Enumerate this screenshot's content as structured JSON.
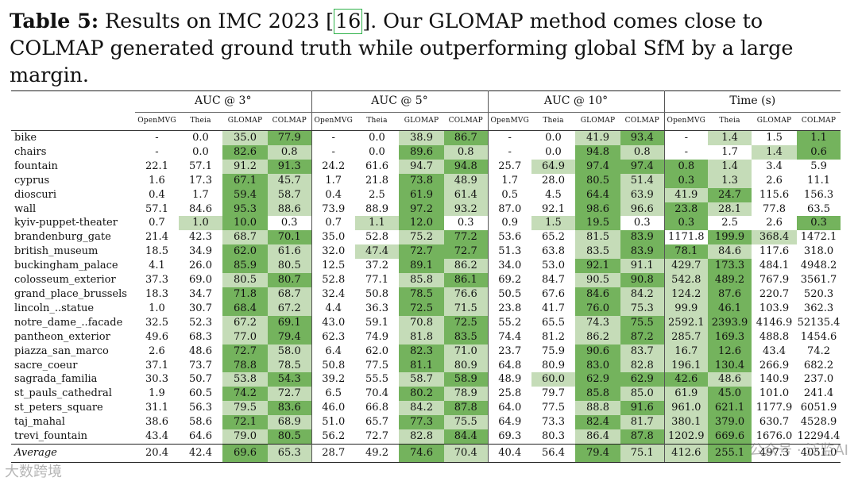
{
  "caption": {
    "label": "Table 5:",
    "text_before": " Results on IMC 2023 [",
    "citation": "16",
    "text_after": "]. Our GLOMAP method comes close to COLMAP generated ground truth while outperforming global SfM by a large margin."
  },
  "table": {
    "groups": [
      "AUC @ 3°",
      "AUC @ 5°",
      "AUC @ 10°",
      "Time (s)"
    ],
    "methods": [
      "OpenMVG",
      "Theia",
      "GLOMAP",
      "COLMAP"
    ],
    "rows": [
      {
        "name": "bike",
        "v": [
          "-",
          "0.0",
          "35.0",
          "77.9",
          "-",
          "0.0",
          "38.9",
          "86.7",
          "-",
          "0.0",
          "41.9",
          "93.4",
          "-",
          "1.4",
          "1.5",
          "1.1"
        ],
        "h": [
          0,
          0,
          1,
          2,
          0,
          0,
          1,
          2,
          0,
          0,
          1,
          2,
          0,
          1,
          0,
          2
        ]
      },
      {
        "name": "chairs",
        "v": [
          "-",
          "0.0",
          "82.6",
          "0.8",
          "-",
          "0.0",
          "89.6",
          "0.8",
          "-",
          "0.0",
          "94.8",
          "0.8",
          "-",
          "1.7",
          "1.4",
          "0.6"
        ],
        "h": [
          0,
          0,
          2,
          1,
          0,
          0,
          2,
          1,
          0,
          0,
          2,
          1,
          0,
          0,
          1,
          2
        ]
      },
      {
        "name": "fountain",
        "v": [
          "22.1",
          "57.1",
          "91.2",
          "91.3",
          "24.2",
          "61.6",
          "94.7",
          "94.8",
          "25.7",
          "64.9",
          "97.4",
          "97.4",
          "0.8",
          "1.4",
          "3.4",
          "5.9"
        ],
        "h": [
          0,
          0,
          1,
          2,
          0,
          0,
          1,
          2,
          0,
          1,
          2,
          2,
          2,
          1,
          0,
          0
        ]
      },
      {
        "name": "cyprus",
        "v": [
          "1.6",
          "17.3",
          "67.1",
          "45.7",
          "1.7",
          "21.8",
          "73.8",
          "48.9",
          "1.7",
          "28.0",
          "80.5",
          "51.4",
          "0.3",
          "1.3",
          "2.6",
          "11.1"
        ],
        "h": [
          0,
          0,
          2,
          1,
          0,
          0,
          2,
          1,
          0,
          0,
          2,
          1,
          2,
          1,
          0,
          0
        ]
      },
      {
        "name": "dioscuri",
        "v": [
          "0.4",
          "1.7",
          "59.4",
          "58.7",
          "0.4",
          "2.5",
          "61.9",
          "61.4",
          "0.5",
          "4.5",
          "64.4",
          "63.9",
          "41.9",
          "24.7",
          "115.6",
          "156.3"
        ],
        "h": [
          0,
          0,
          2,
          1,
          0,
          0,
          2,
          1,
          0,
          0,
          2,
          1,
          1,
          2,
          0,
          0
        ]
      },
      {
        "name": "wall",
        "v": [
          "57.1",
          "84.6",
          "95.3",
          "88.6",
          "73.9",
          "88.9",
          "97.2",
          "93.2",
          "87.0",
          "92.1",
          "98.6",
          "96.6",
          "23.8",
          "28.1",
          "77.8",
          "63.5"
        ],
        "h": [
          0,
          0,
          2,
          1,
          0,
          0,
          2,
          1,
          0,
          0,
          2,
          1,
          2,
          1,
          0,
          0
        ]
      },
      {
        "name": "kyiv-puppet-theater",
        "v": [
          "0.7",
          "1.0",
          "10.0",
          "0.3",
          "0.7",
          "1.1",
          "12.0",
          "0.3",
          "0.9",
          "1.5",
          "19.5",
          "0.3",
          "0.3",
          "2.5",
          "2.6",
          "0.3"
        ],
        "h": [
          0,
          1,
          2,
          0,
          0,
          1,
          2,
          0,
          0,
          1,
          2,
          0,
          2,
          0,
          0,
          2
        ]
      },
      {
        "name": "brandenburg_gate",
        "v": [
          "21.4",
          "42.3",
          "68.7",
          "70.1",
          "35.0",
          "52.8",
          "75.2",
          "77.2",
          "53.6",
          "65.2",
          "81.5",
          "83.9",
          "1171.8",
          "199.9",
          "368.4",
          "1472.1"
        ],
        "h": [
          0,
          0,
          1,
          2,
          0,
          0,
          1,
          2,
          0,
          0,
          1,
          2,
          0,
          2,
          1,
          0
        ]
      },
      {
        "name": "british_museum",
        "v": [
          "18.5",
          "34.9",
          "62.0",
          "61.6",
          "32.0",
          "47.4",
          "72.7",
          "72.7",
          "51.3",
          "63.8",
          "83.5",
          "83.9",
          "78.1",
          "84.6",
          "117.6",
          "318.0"
        ],
        "h": [
          0,
          0,
          2,
          1,
          0,
          1,
          2,
          2,
          0,
          0,
          1,
          2,
          2,
          1,
          0,
          0
        ]
      },
      {
        "name": "buckingham_palace",
        "v": [
          "4.1",
          "26.0",
          "85.9",
          "80.5",
          "12.5",
          "37.2",
          "89.1",
          "86.2",
          "34.0",
          "53.0",
          "92.1",
          "91.1",
          "429.7",
          "173.3",
          "484.1",
          "4948.2"
        ],
        "h": [
          0,
          0,
          2,
          1,
          0,
          0,
          2,
          1,
          0,
          0,
          2,
          1,
          1,
          2,
          0,
          0
        ]
      },
      {
        "name": "colosseum_exterior",
        "v": [
          "37.3",
          "69.0",
          "80.5",
          "80.7",
          "52.8",
          "77.1",
          "85.8",
          "86.1",
          "69.2",
          "84.7",
          "90.5",
          "90.8",
          "542.8",
          "489.2",
          "767.9",
          "3561.7"
        ],
        "h": [
          0,
          0,
          1,
          2,
          0,
          0,
          1,
          2,
          0,
          0,
          1,
          2,
          1,
          2,
          0,
          0
        ]
      },
      {
        "name": "grand_place_brussels",
        "v": [
          "18.3",
          "34.7",
          "71.8",
          "68.7",
          "32.4",
          "50.8",
          "78.5",
          "76.6",
          "50.5",
          "67.6",
          "84.6",
          "84.2",
          "124.2",
          "87.6",
          "220.7",
          "520.3"
        ],
        "h": [
          0,
          0,
          2,
          1,
          0,
          0,
          2,
          1,
          0,
          0,
          2,
          1,
          1,
          2,
          0,
          0
        ]
      },
      {
        "name": "lincoln_..statue",
        "v": [
          "1.0",
          "30.7",
          "68.4",
          "67.2",
          "4.4",
          "36.3",
          "72.5",
          "71.5",
          "23.8",
          "41.7",
          "76.0",
          "75.3",
          "99.9",
          "46.1",
          "103.9",
          "362.3"
        ],
        "h": [
          0,
          0,
          2,
          1,
          0,
          0,
          2,
          1,
          0,
          0,
          2,
          1,
          1,
          2,
          0,
          0
        ]
      },
      {
        "name": "notre_dame_..facade",
        "v": [
          "32.5",
          "52.3",
          "67.2",
          "69.1",
          "43.0",
          "59.1",
          "70.8",
          "72.5",
          "55.2",
          "65.5",
          "74.3",
          "75.5",
          "2592.1",
          "2393.9",
          "4146.9",
          "52135.4"
        ],
        "h": [
          0,
          0,
          1,
          2,
          0,
          0,
          1,
          2,
          0,
          0,
          1,
          2,
          1,
          2,
          0,
          0
        ]
      },
      {
        "name": "pantheon_exterior",
        "v": [
          "49.6",
          "68.3",
          "77.0",
          "79.4",
          "62.3",
          "74.9",
          "81.8",
          "83.5",
          "74.4",
          "81.2",
          "86.2",
          "87.2",
          "285.7",
          "169.3",
          "488.8",
          "1454.6"
        ],
        "h": [
          0,
          0,
          1,
          2,
          0,
          0,
          1,
          2,
          0,
          0,
          1,
          2,
          1,
          2,
          0,
          0
        ]
      },
      {
        "name": "piazza_san_marco",
        "v": [
          "2.6",
          "48.6",
          "72.7",
          "58.0",
          "6.4",
          "62.0",
          "82.3",
          "71.0",
          "23.7",
          "75.9",
          "90.6",
          "83.7",
          "16.7",
          "12.6",
          "43.4",
          "74.2"
        ],
        "h": [
          0,
          0,
          2,
          1,
          0,
          0,
          2,
          1,
          0,
          0,
          2,
          1,
          1,
          2,
          0,
          0
        ]
      },
      {
        "name": "sacre_coeur",
        "v": [
          "37.1",
          "73.7",
          "78.8",
          "78.5",
          "50.8",
          "77.5",
          "81.1",
          "80.9",
          "64.8",
          "80.9",
          "83.0",
          "82.8",
          "196.1",
          "130.4",
          "266.9",
          "682.2"
        ],
        "h": [
          0,
          0,
          2,
          1,
          0,
          0,
          2,
          1,
          0,
          0,
          2,
          1,
          1,
          2,
          0,
          0
        ]
      },
      {
        "name": "sagrada_familia",
        "v": [
          "30.3",
          "50.7",
          "53.8",
          "54.3",
          "39.2",
          "55.5",
          "58.7",
          "58.9",
          "48.9",
          "60.0",
          "62.9",
          "62.9",
          "42.6",
          "48.6",
          "140.9",
          "237.0"
        ],
        "h": [
          0,
          0,
          1,
          2,
          0,
          0,
          1,
          2,
          0,
          1,
          2,
          2,
          2,
          1,
          0,
          0
        ]
      },
      {
        "name": "st_pauls_cathedral",
        "v": [
          "1.9",
          "60.5",
          "74.2",
          "72.7",
          "6.5",
          "70.4",
          "80.2",
          "78.9",
          "25.8",
          "79.7",
          "85.8",
          "85.0",
          "61.9",
          "45.0",
          "101.0",
          "241.4"
        ],
        "h": [
          0,
          0,
          2,
          1,
          0,
          0,
          2,
          1,
          0,
          0,
          2,
          1,
          1,
          2,
          0,
          0
        ]
      },
      {
        "name": "st_peters_square",
        "v": [
          "31.1",
          "56.3",
          "79.5",
          "83.6",
          "46.0",
          "66.8",
          "84.2",
          "87.8",
          "64.0",
          "77.5",
          "88.8",
          "91.6",
          "961.0",
          "621.1",
          "1177.9",
          "6051.9"
        ],
        "h": [
          0,
          0,
          1,
          2,
          0,
          0,
          1,
          2,
          0,
          0,
          1,
          2,
          1,
          2,
          0,
          0
        ]
      },
      {
        "name": "taj_mahal",
        "v": [
          "38.6",
          "58.6",
          "72.1",
          "68.9",
          "51.0",
          "65.7",
          "77.3",
          "75.5",
          "64.9",
          "73.3",
          "82.4",
          "81.7",
          "380.1",
          "379.0",
          "630.7",
          "4528.9"
        ],
        "h": [
          0,
          0,
          2,
          1,
          0,
          0,
          2,
          1,
          0,
          0,
          2,
          1,
          1,
          2,
          0,
          0
        ]
      },
      {
        "name": "trevi_fountain",
        "v": [
          "43.4",
          "64.6",
          "79.0",
          "80.5",
          "56.2",
          "72.7",
          "82.8",
          "84.4",
          "69.3",
          "80.3",
          "86.4",
          "87.8",
          "1202.9",
          "669.6",
          "1676.0",
          "12294.4"
        ],
        "h": [
          0,
          0,
          1,
          2,
          0,
          0,
          1,
          2,
          0,
          0,
          1,
          2,
          1,
          2,
          0,
          0
        ]
      }
    ],
    "average": {
      "name": "Average",
      "v": [
        "20.4",
        "42.4",
        "69.6",
        "65.3",
        "28.7",
        "49.2",
        "74.6",
        "70.4",
        "40.4",
        "56.4",
        "79.4",
        "75.1",
        "412.6",
        "255.1",
        "497.3",
        "4051.0"
      ],
      "h": [
        0,
        0,
        2,
        1,
        0,
        0,
        2,
        1,
        0,
        0,
        2,
        1,
        1,
        2,
        0,
        0
      ]
    }
  },
  "watermarks": [
    "大数跨境",
    "公众号 · 泛监AI"
  ]
}
